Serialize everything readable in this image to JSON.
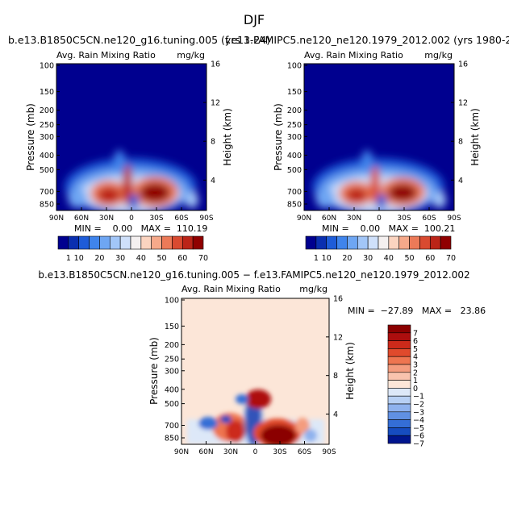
{
  "season": "DJF",
  "panels": [
    {
      "case_title": "b.e13.B1850C5CN.ne120_g16.tuning.005 (yrs 1-24)",
      "var_title": "Avg. Rain Mixing Ratio",
      "units": "mg/kg",
      "ylabel": "Pressure (mb)",
      "ylabel_right": "Height (km)",
      "p_ticks": [
        "100",
        "150",
        "200",
        "250",
        "300",
        "400",
        "500",
        "700",
        "850"
      ],
      "z_ticks": [
        "16",
        "12",
        "8",
        "4"
      ],
      "x_ticks": [
        "90N",
        "60N",
        "30N",
        "0",
        "30S",
        "60S",
        "90S"
      ],
      "stats": "MIN =    0.00   MAX =  110.19",
      "colorbar_labels": [
        "1",
        "10",
        "20",
        "30",
        "40",
        "50",
        "60",
        "70"
      ]
    },
    {
      "case_title": "f.e13.FAMIPC5.ne120_ne120.1979_2012.002 (yrs 1980-2012)",
      "var_title": "Avg. Rain Mixing Ratio",
      "units": "mg/kg",
      "ylabel": "Pressure (mb)",
      "ylabel_right": "Height (km)",
      "p_ticks": [
        "100",
        "150",
        "200",
        "250",
        "300",
        "400",
        "500",
        "700",
        "850"
      ],
      "z_ticks": [
        "16",
        "12",
        "8",
        "4"
      ],
      "x_ticks": [
        "90N",
        "60N",
        "30N",
        "0",
        "30S",
        "60S",
        "90S"
      ],
      "stats": "MIN =    0.00   MAX =  100.21",
      "colorbar_labels": [
        "1",
        "10",
        "20",
        "30",
        "40",
        "50",
        "60",
        "70"
      ]
    },
    {
      "case_title": "b.e13.B1850C5CN.ne120_g16.tuning.005 − f.e13.FAMIPC5.ne120_ne120.1979_2012.002",
      "var_title": "Avg. Rain Mixing Ratio",
      "units": "mg/kg",
      "ylabel": "Pressure (mb)",
      "ylabel_right": "Height (km)",
      "p_ticks": [
        "100",
        "150",
        "200",
        "250",
        "300",
        "400",
        "500",
        "700",
        "850"
      ],
      "z_ticks": [
        "16",
        "12",
        "8",
        "4"
      ],
      "x_ticks": [
        "90N",
        "60N",
        "30N",
        "0",
        "30S",
        "60S",
        "90S"
      ],
      "stats": "MIN =  −27.89   MAX =   23.86",
      "colorbar_labels": [
        "7",
        "6",
        "5",
        "4",
        "3",
        "2",
        "1",
        "0",
        "−1",
        "−2",
        "−3",
        "−4",
        "−5",
        "−6",
        "−7"
      ]
    }
  ],
  "colors": {
    "abs_scale": [
      "#00008f",
      "#0a2fb0",
      "#1e5cd8",
      "#3f84ec",
      "#6ea6f3",
      "#a2c6f8",
      "#cfe0fa",
      "#f4f0f0",
      "#fbd4c0",
      "#f6a98a",
      "#ec7a58",
      "#d94a30",
      "#bb2418",
      "#900000"
    ],
    "diff_scale": [
      "#8b0000",
      "#ad0e0e",
      "#cc2a1a",
      "#e04a2c",
      "#ee7550",
      "#f49c7e",
      "#f9c3ad",
      "#fce6d8",
      "#dde8f8",
      "#b8d0f4",
      "#8fb2ee",
      "#6090e3",
      "#346ed6",
      "#164cc0",
      "#00158e"
    ]
  },
  "chart_data": [
    {
      "type": "heatmap",
      "title": "Avg. Rain Mixing Ratio",
      "units": "mg/kg",
      "xlabel": "",
      "ylabel": "Pressure (mb)",
      "x_axis": {
        "range": [
          "90N",
          "90S"
        ],
        "ticks": [
          "90N",
          "60N",
          "30N",
          "0",
          "30S",
          "60S",
          "90S"
        ]
      },
      "y_axis": {
        "range_mb": [
          850,
          100
        ],
        "scale": "log"
      },
      "levels": [
        1,
        5,
        10,
        15,
        20,
        25,
        30,
        35,
        40,
        45,
        50,
        55,
        60,
        65,
        70
      ],
      "min": 0.0,
      "max": 110.19,
      "features": [
        {
          "lat": 22,
          "p": 720,
          "value": 70
        },
        {
          "lat": -30,
          "p": 720,
          "value": 80
        },
        {
          "lat": 0,
          "p": 600,
          "value": 60
        }
      ]
    },
    {
      "type": "heatmap",
      "title": "Avg. Rain Mixing Ratio",
      "units": "mg/kg",
      "xlabel": "",
      "ylabel": "Pressure (mb)",
      "x_axis": {
        "range": [
          "90N",
          "90S"
        ],
        "ticks": [
          "90N",
          "60N",
          "30N",
          "0",
          "30S",
          "60S",
          "90S"
        ]
      },
      "y_axis": {
        "range_mb": [
          850,
          100
        ],
        "scale": "log"
      },
      "levels": [
        1,
        5,
        10,
        15,
        20,
        25,
        30,
        35,
        40,
        45,
        50,
        55,
        60,
        65,
        70
      ],
      "min": 0.0,
      "max": 100.21,
      "features": [
        {
          "lat": 22,
          "p": 720,
          "value": 65
        },
        {
          "lat": -30,
          "p": 720,
          "value": 75
        },
        {
          "lat": 0,
          "p": 600,
          "value": 40
        }
      ]
    },
    {
      "type": "heatmap",
      "title": "Avg. Rain Mixing Ratio",
      "units": "mg/kg",
      "xlabel": "",
      "ylabel": "Pressure (mb)",
      "x_axis": {
        "range": [
          "90N",
          "90S"
        ],
        "ticks": [
          "90N",
          "60N",
          "30N",
          "0",
          "30S",
          "60S",
          "90S"
        ]
      },
      "y_axis": {
        "range_mb": [
          850,
          100
        ],
        "scale": "log"
      },
      "levels": [
        -7,
        -6,
        -5,
        -4,
        -3,
        -2,
        -1,
        0,
        1,
        2,
        3,
        4,
        5,
        6,
        7
      ],
      "min": -27.89,
      "max": 23.86,
      "features": [
        {
          "lat": 2,
          "p": 680,
          "value": -7
        },
        {
          "lat": -25,
          "p": 780,
          "value": 7
        },
        {
          "lat": 20,
          "p": 700,
          "value": 5
        }
      ]
    }
  ]
}
